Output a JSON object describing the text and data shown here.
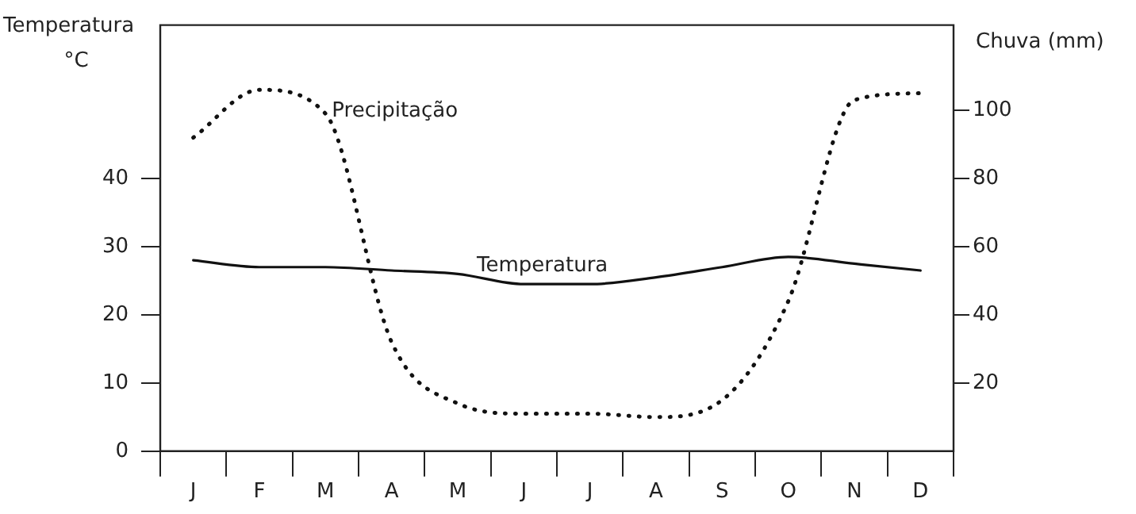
{
  "chart_data": {
    "type": "line",
    "ylabel": "Temperatura °C",
    "y2label": "Chuva (mm)",
    "categories": [
      "J",
      "F",
      "M",
      "A",
      "M",
      "J",
      "J",
      "A",
      "S",
      "O",
      "N",
      "D"
    ],
    "series": [
      {
        "name": "Precipitação",
        "axis": "y2",
        "color": "#111111",
        "line_style": "dotted",
        "values": [
          92,
          106,
          99,
          32,
          14,
          11,
          11,
          10,
          15,
          44,
          103,
          105
        ]
      },
      {
        "name": "Temperatura",
        "color": "#111111",
        "line_style": "solid",
        "values": [
          28,
          27,
          27,
          26.5,
          26,
          24.5,
          24.5,
          25.5,
          27,
          28.5,
          27.5,
          26.5
        ]
      }
    ],
    "ylim": [
      0,
      62.5
    ],
    "yticks": [
      0,
      10,
      20,
      30,
      40
    ],
    "y2lim": [
      0,
      125
    ],
    "y2ticks": [
      20,
      40,
      60,
      80,
      100
    ],
    "grid": false,
    "legend": false,
    "marker": "none"
  }
}
